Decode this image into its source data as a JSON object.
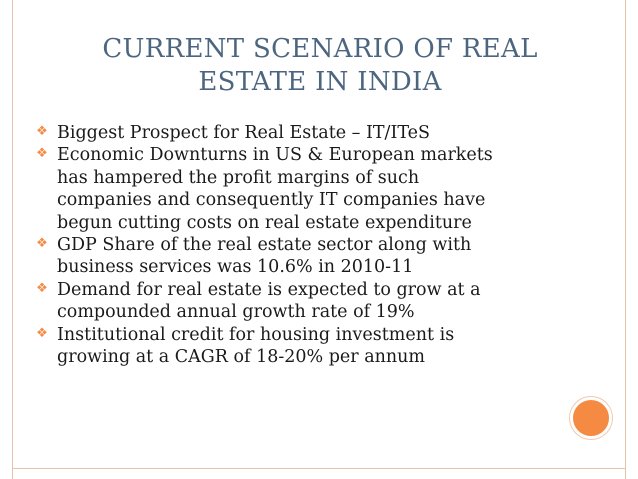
{
  "slide": {
    "title_lines": [
      "CURRENT SCENARIO OF REAL",
      "ESTATE IN INDIA"
    ],
    "bullet_icon": "four-diamond-bullet-icon",
    "accent_color": "#f58a43",
    "title_color": "#4d6680",
    "bullets": [
      {
        "lines": [
          "Biggest Prospect for Real Estate – IT/ITeS"
        ]
      },
      {
        "lines": [
          "Economic Downturns in US & European markets",
          "has hampered the profit margins of such",
          "companies and consequently IT companies have",
          "begun cutting costs on real estate expenditure"
        ]
      },
      {
        "lines": [
          "GDP Share of the real estate sector along with",
          "business services was 10.6% in 2010-11"
        ]
      },
      {
        "lines": [
          "Demand for real estate is expected to grow at a",
          "compounded annual growth rate of 19%"
        ]
      },
      {
        "lines": [
          "Institutional credit for housing investment is",
          "growing at a CAGR of 18-20% per annum"
        ]
      }
    ]
  }
}
